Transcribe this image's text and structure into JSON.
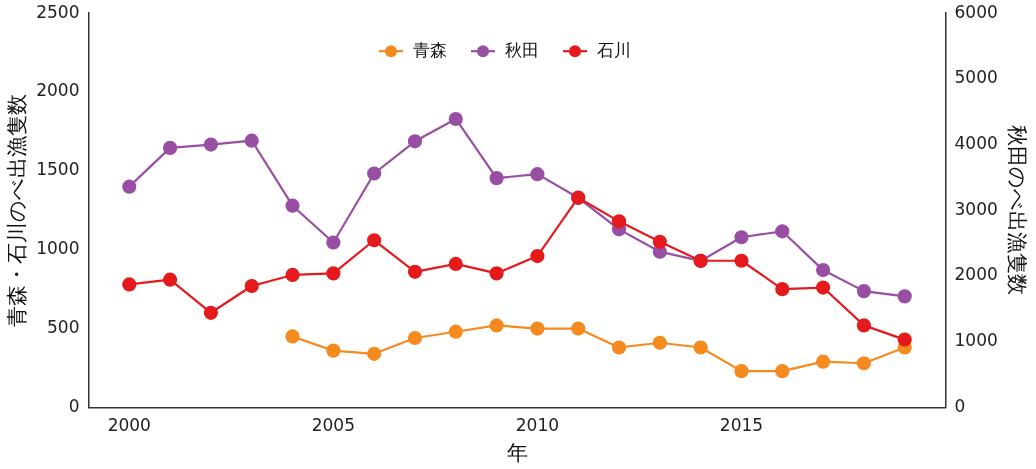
{
  "chart_data": {
    "type": "line",
    "xlabel": "年",
    "ylabel": "青森・石川のべ出漁隻数",
    "y2label": "秋田のべ出漁隻数",
    "x": [
      2000,
      2001,
      2002,
      2003,
      2004,
      2005,
      2006,
      2007,
      2008,
      2009,
      2010,
      2011,
      2012,
      2013,
      2014,
      2015,
      2016,
      2017,
      2018,
      2019
    ],
    "series": [
      {
        "name": "青森",
        "color": "#f58a1f",
        "values": [
          null,
          null,
          null,
          null,
          450,
          360,
          340,
          440,
          480,
          520,
          500,
          500,
          380,
          410,
          380,
          230,
          230,
          290,
          280,
          380
        ]
      },
      {
        "name": "秋田",
        "color": "#984ea3",
        "axis": "y2",
        "values": [
          3360,
          3950,
          4000,
          4060,
          3070,
          2510,
          3560,
          4050,
          4390,
          3490,
          3550,
          3190,
          2710,
          2370,
          2230,
          2590,
          2680,
          2090,
          1770,
          1690
        ]
      },
      {
        "name": "石川",
        "color": "#e41a1c",
        "values": [
          780,
          810,
          600,
          770,
          840,
          850,
          1060,
          860,
          910,
          850,
          960,
          1330,
          1180,
          1050,
          930,
          930,
          750,
          760,
          520,
          430
        ]
      }
    ],
    "xlim": [
      1999,
      2020
    ],
    "xticks": [
      2000,
      2005,
      2010,
      2015
    ],
    "ylim": [
      0,
      2500
    ],
    "yticks": [
      0,
      500,
      1000,
      1500,
      2000,
      2500
    ],
    "y2lim": [
      0,
      6000
    ],
    "y2ticks": [
      0,
      1000,
      2000,
      3000,
      4000,
      5000,
      6000
    ],
    "legend": "top",
    "marker": "circle",
    "line_style": "solid",
    "grid": false
  }
}
